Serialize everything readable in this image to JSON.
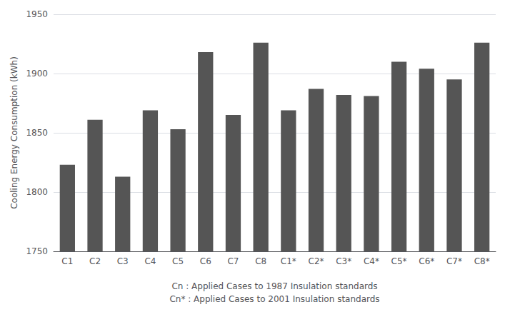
{
  "chart_data": {
    "type": "bar",
    "categories": [
      "C1",
      "C2",
      "C3",
      "C4",
      "C5",
      "C6",
      "C7",
      "C8",
      "C1*",
      "C2*",
      "C3*",
      "C4*",
      "C5*",
      "C6*",
      "C7*",
      "C8*"
    ],
    "values": [
      1823,
      1861,
      1813,
      1869,
      1853,
      1918,
      1865,
      1926,
      1869,
      1887,
      1882,
      1881,
      1910,
      1904,
      1895,
      1926
    ],
    "color": "#555555",
    "ylabel": "Cooling Energy Consumption (kWh)",
    "xlabel": "Cn : Applied Cases to 1987 Insulation standards\nCn* : Applied Cases to 2001 Insulation standards",
    "ylim": [
      1750,
      1950
    ],
    "yticks": [
      1750,
      1800,
      1850,
      1900,
      1950
    ],
    "grid": true
  }
}
